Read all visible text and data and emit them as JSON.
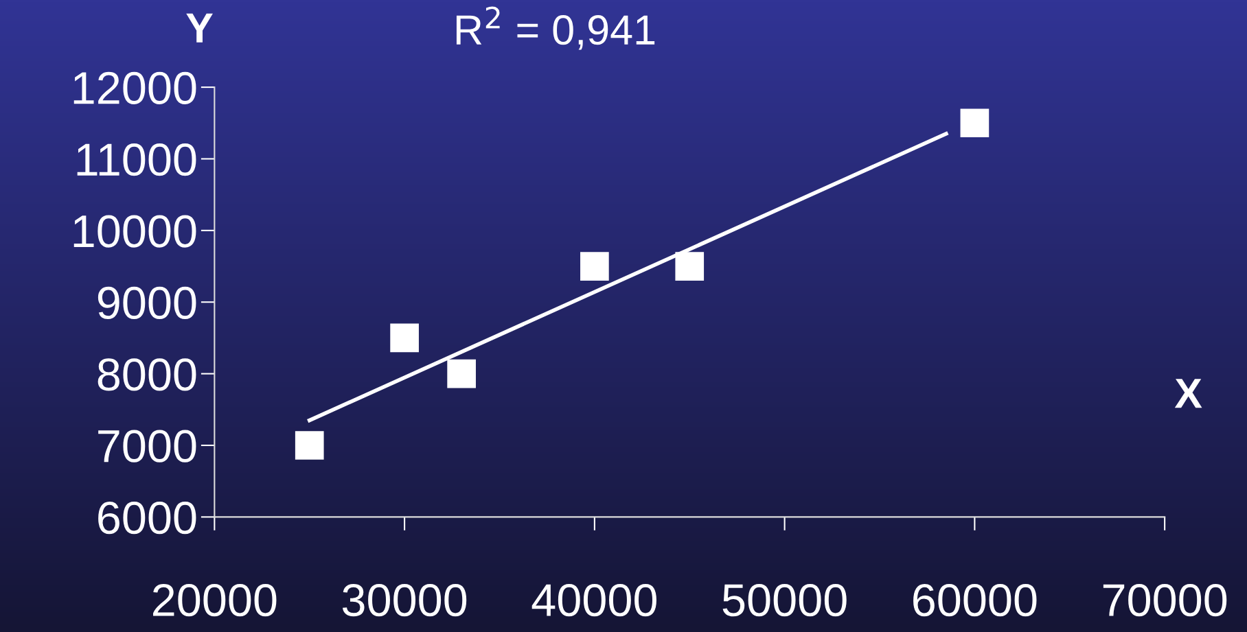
{
  "chart_data": {
    "type": "scatter",
    "title": "R$^{2}$ = 0,941",
    "xlabel": "X",
    "ylabel": "Y",
    "xlim": [
      20000,
      70000
    ],
    "xticks": [
      20000,
      30000,
      40000,
      50000,
      60000,
      70000
    ],
    "ylim": [
      6000,
      12000
    ],
    "yticks": [
      6000,
      7000,
      8000,
      9000,
      10000,
      11000,
      12000
    ],
    "grid": false,
    "legend": false,
    "marker": "square",
    "series": [
      {
        "color": "#ffffff",
        "x": [
          25000,
          30000,
          33000,
          40000,
          45000,
          60000
        ],
        "values": [
          7000,
          8500,
          8000,
          9500,
          9500,
          11500
        ]
      },
      {
        "type": "line",
        "color": "#ffffff",
        "line_style": "solid",
        "marker": "none",
        "x": [
          25000,
          58500
        ],
        "values": [
          7350,
          11350
        ]
      }
    ]
  }
}
